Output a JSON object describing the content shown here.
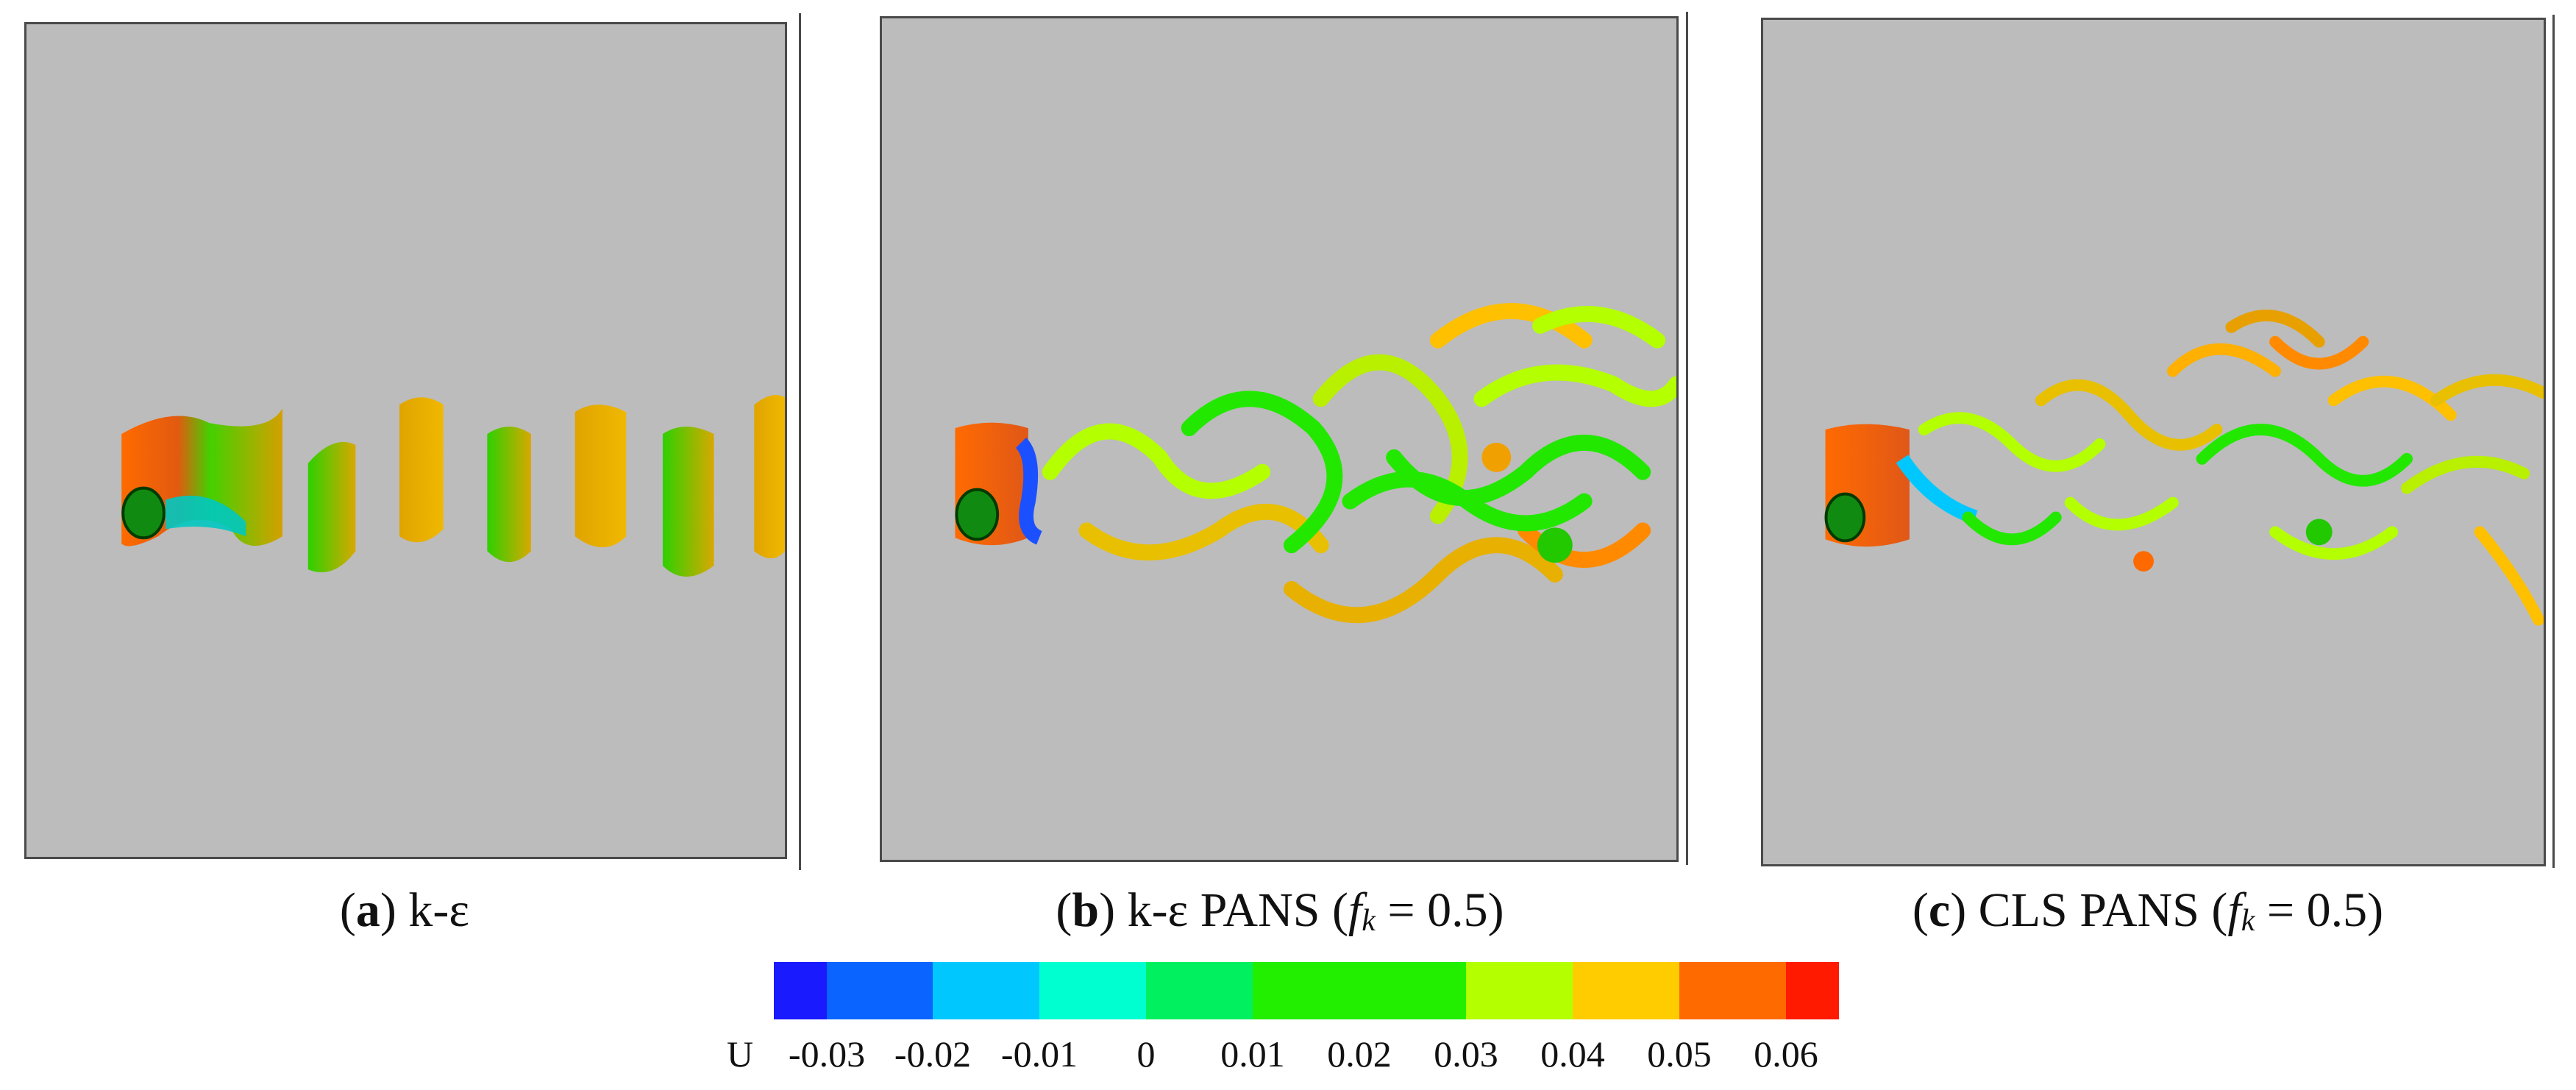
{
  "panels": [
    {
      "letter": "a",
      "label": "k-ε",
      "model": "",
      "param_symbol": "",
      "param_sub": "",
      "param_value": ""
    },
    {
      "letter": "b",
      "label": "k-ε PANS",
      "model": "",
      "param_symbol": "f",
      "param_sub": "k",
      "param_value": " = 0.5)"
    },
    {
      "letter": "c",
      "label": "CLS PANS",
      "model": "",
      "param_symbol": "f",
      "param_sub": "k",
      "param_value": " = 0.5)"
    }
  ],
  "colorbar": {
    "variable": "U",
    "ticks": [
      "-0.03",
      "-0.02",
      "-0.01",
      "0",
      "0.01",
      "0.02",
      "0.03",
      "0.04",
      "0.05",
      "0.06"
    ],
    "colors": [
      "#1a1aff",
      "#0a64ff",
      "#00c8ff",
      "#00ffd0",
      "#00f060",
      "#22ee00",
      "#22ee00",
      "#b4ff00",
      "#ffcc00",
      "#ff6a00",
      "#ff1a00"
    ]
  }
}
